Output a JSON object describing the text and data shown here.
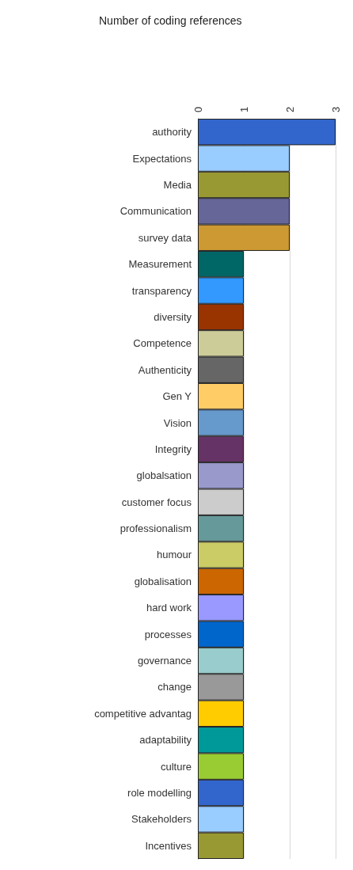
{
  "chart_data": {
    "type": "bar",
    "orientation": "horizontal",
    "title": "Number of coding references",
    "categories": [
      "authority",
      "Expectations",
      "Media",
      "Communication",
      "survey data",
      "Measurement",
      "transparency",
      "diversity",
      "Competence",
      "Authenticity",
      "Gen Y",
      "Vision",
      "Integrity",
      "globalsation",
      "customer focus",
      "professionalism",
      "humour",
      "globalisation",
      "hard work",
      "processes",
      "governance",
      "change",
      "competitive advantag",
      "adaptability",
      "culture",
      "role modelling",
      "Stakeholders",
      "Incentives"
    ],
    "values": [
      3,
      2,
      2,
      2,
      2,
      1,
      1,
      1,
      1,
      1,
      1,
      1,
      1,
      1,
      1,
      1,
      1,
      1,
      1,
      1,
      1,
      1,
      1,
      1,
      1,
      1,
      1,
      1
    ],
    "colors": [
      "#3366cc",
      "#99ccff",
      "#999933",
      "#666699",
      "#cc9933",
      "#006666",
      "#3399ff",
      "#993300",
      "#cccc99",
      "#666666",
      "#ffcc66",
      "#6699cc",
      "#663366",
      "#9999cc",
      "#cccccc",
      "#669999",
      "#cccc66",
      "#cc6600",
      "#9999ff",
      "#0066cc",
      "#99cccc",
      "#999999",
      "#ffcc00",
      "#009999",
      "#99cc33",
      "#3366cc",
      "#99ccff",
      "#999933"
    ],
    "xlim": [
      0,
      3
    ],
    "xticks": [
      0,
      1,
      2,
      3
    ],
    "grid": "x"
  }
}
